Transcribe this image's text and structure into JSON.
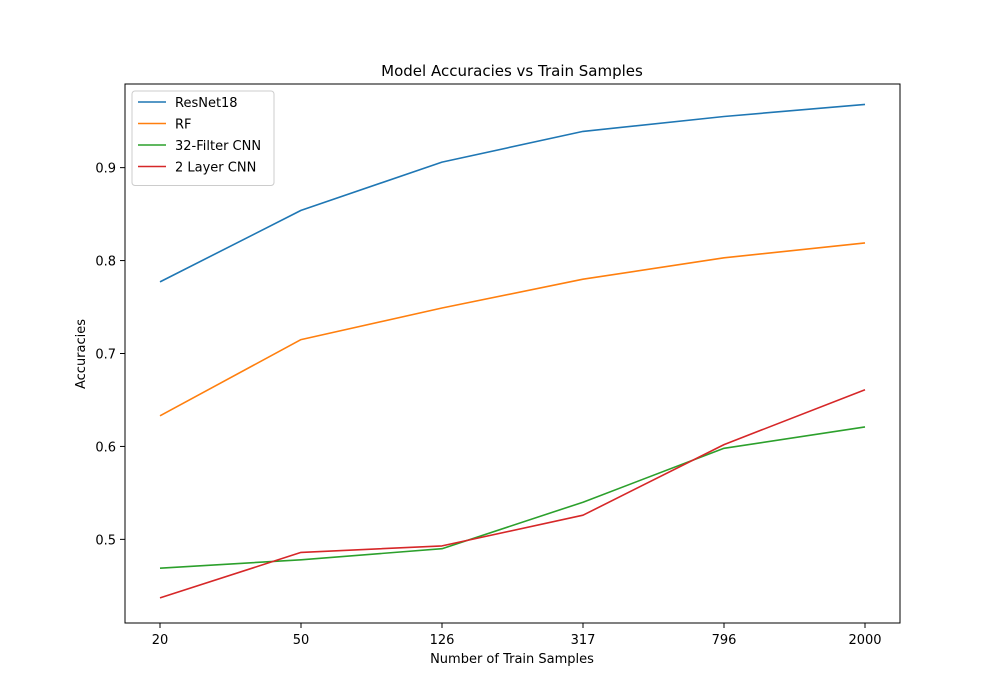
{
  "chart_data": {
    "type": "line",
    "title": "Model Accuracies vs Train Samples",
    "xlabel": "Number of Train Samples",
    "ylabel": "Accuracies",
    "categories": [
      "20",
      "50",
      "126",
      "317",
      "796",
      "2000"
    ],
    "yticks": [
      "0.5",
      "0.6",
      "0.7",
      "0.8",
      "0.9"
    ],
    "ylim": [
      0.41,
      0.99
    ],
    "grid": false,
    "legend_position": "top-left",
    "series": [
      {
        "name": "ResNet18",
        "color": "#1f77b4",
        "values": [
          0.777,
          0.854,
          0.906,
          0.939,
          0.955,
          0.968
        ]
      },
      {
        "name": "RF",
        "color": "#ff7f0e",
        "values": [
          0.633,
          0.715,
          0.749,
          0.78,
          0.803,
          0.819
        ]
      },
      {
        "name": "32-Filter CNN",
        "color": "#2ca02c",
        "values": [
          0.469,
          0.478,
          0.49,
          0.54,
          0.598,
          0.621
        ]
      },
      {
        "name": "2 Layer CNN",
        "color": "#d62728",
        "values": [
          0.437,
          0.486,
          0.493,
          0.526,
          0.602,
          0.661
        ]
      }
    ]
  }
}
